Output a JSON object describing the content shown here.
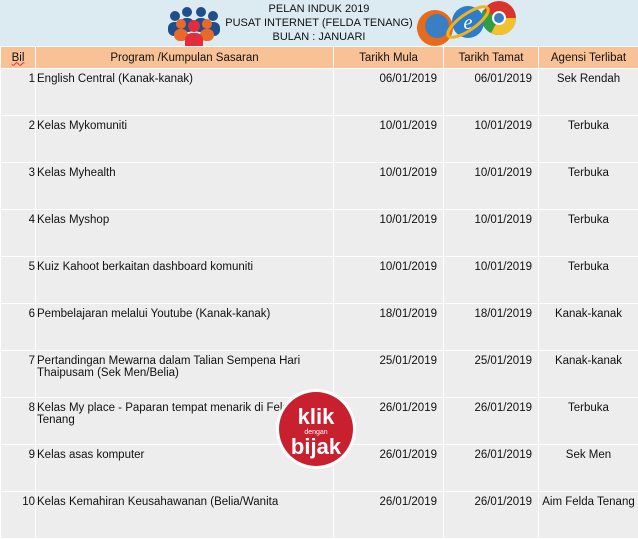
{
  "header": {
    "line1": "PELAN INDUK 2019",
    "line2": "PUSAT INTERNET (FELDA TENANG)",
    "line3": "BULAN : JANUARI"
  },
  "columns": [
    "Bil",
    "Program /Kumpulan Sasaran",
    "Tarikh Mula",
    "Tarikh Tamat",
    "Agensi Terlibat"
  ],
  "rows": [
    {
      "bil": "1",
      "program": "English Central (Kanak-kanak)",
      "mula": "06/01/2019",
      "tamat": "06/01/2019",
      "agensi": "Sek Rendah"
    },
    {
      "bil": "2",
      "program": "Kelas Mykomuniti",
      "mula": "10/01/2019",
      "tamat": "10/01/2019",
      "agensi": "Terbuka"
    },
    {
      "bil": "3",
      "program": "Kelas Myhealth",
      "mula": "10/01/2019",
      "tamat": "10/01/2019",
      "agensi": "Terbuka"
    },
    {
      "bil": "4",
      "program": "Kelas Myshop",
      "mula": "10/01/2019",
      "tamat": "10/01/2019",
      "agensi": "Terbuka"
    },
    {
      "bil": "5",
      "program": "Kuiz Kahoot berkaitan dashboard komuniti",
      "mula": "10/01/2019",
      "tamat": "10/01/2019",
      "agensi": "Terbuka"
    },
    {
      "bil": "6",
      "program": "Pembelajaran melalui Youtube (Kanak-kanak)",
      "mula": "18/01/2019",
      "tamat": "18/01/2019",
      "agensi": "Kanak-kanak"
    },
    {
      "bil": "7",
      "program": "Pertandingan Mewarna dalam Talian Sempena  Hari Thaipusam  (Sek Men/Belia)",
      "mula": "25/01/2019",
      "tamat": "25/01/2019",
      "agensi": "Kanak-kanak"
    },
    {
      "bil": "8",
      "program": "Kelas My place - Paparan tempat menarik di Felda Tenang",
      "mula": "26/01/2019",
      "tamat": "26/01/2019",
      "agensi": "Terbuka"
    },
    {
      "bil": "9",
      "program": "Kelas asas komputer",
      "mula": "26/01/2019",
      "tamat": "26/01/2019",
      "agensi": "Sek Men"
    },
    {
      "bil": "10",
      "program": "Kelas Kemahiran Keusahawanan (Belia/Wanita",
      "mula": "26/01/2019",
      "tamat": "26/01/2019",
      "agensi": "Aim Felda Tenang"
    }
  ],
  "badge": {
    "text1": "klik",
    "text2": "dengan",
    "text3": "bijak",
    "color": "#c8202e"
  }
}
